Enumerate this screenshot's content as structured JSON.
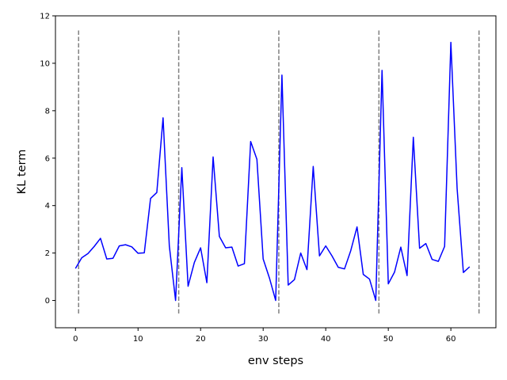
{
  "chart_data": {
    "type": "line",
    "xlabel": "env steps",
    "ylabel": "KL term",
    "xlim": [
      -3.2,
      67.2
    ],
    "ylim": [
      -1.15,
      12
    ],
    "xticks": [
      0,
      10,
      20,
      30,
      40,
      50,
      60
    ],
    "yticks": [
      0,
      2,
      4,
      6,
      8,
      10,
      12
    ],
    "grid": false,
    "legend": "none",
    "line_color": "#0000ff",
    "vline_color": "#808080",
    "series": [
      {
        "x": [
          0,
          1,
          2,
          3,
          4,
          5,
          6,
          7,
          8,
          9,
          10,
          11,
          12,
          13,
          14,
          15,
          16,
          17,
          18,
          19,
          20,
          21,
          22,
          23,
          24,
          25,
          26,
          27,
          28,
          29,
          30,
          31,
          32,
          33,
          34,
          35,
          36,
          37,
          38,
          39,
          40,
          41,
          42,
          43,
          44,
          45,
          46,
          47,
          48,
          49,
          50,
          51,
          52,
          53,
          54,
          55,
          56,
          57,
          58,
          59,
          60,
          61,
          62,
          63
        ],
        "values": [
          1.35,
          1.8,
          1.98,
          2.28,
          2.62,
          1.75,
          1.78,
          2.3,
          2.35,
          2.26,
          1.99,
          2.01,
          4.3,
          4.55,
          7.7,
          2.3,
          0.0,
          5.6,
          0.6,
          1.6,
          2.22,
          0.75,
          6.05,
          2.7,
          2.22,
          2.25,
          1.45,
          1.55,
          6.7,
          5.95,
          1.75,
          0.95,
          0.0,
          9.5,
          0.65,
          0.88,
          2.0,
          1.3,
          5.65,
          1.88,
          2.3,
          1.88,
          1.4,
          1.33,
          2.1,
          3.1,
          1.1,
          0.9,
          0.0,
          9.7,
          0.7,
          1.2,
          2.25,
          1.05,
          6.88,
          2.2,
          2.4,
          1.73,
          1.65,
          2.28,
          10.88,
          4.72,
          1.18,
          1.42
        ]
      }
    ],
    "vlines": {
      "x": [
        0.5,
        16.5,
        32.5,
        48.5,
        64.5
      ],
      "ymin": -0.55,
      "ymax": 11.45
    }
  }
}
